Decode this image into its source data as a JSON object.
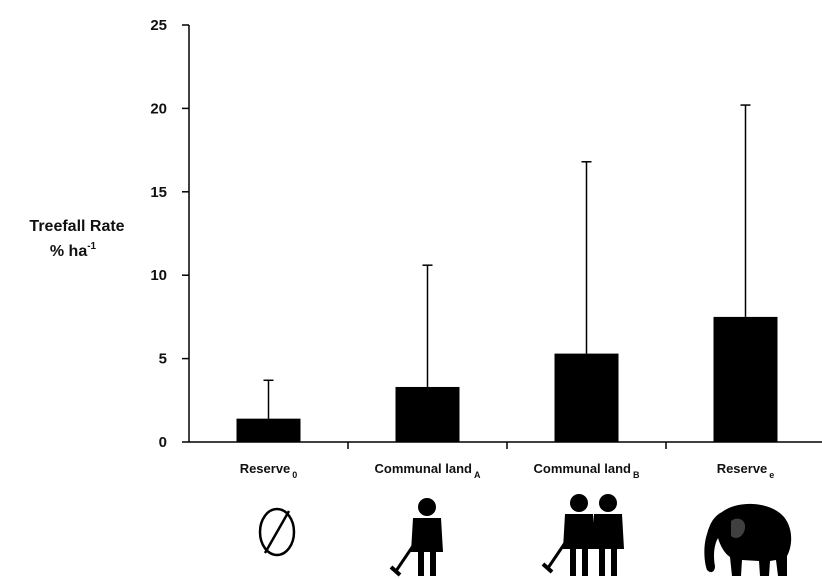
{
  "chart_data": {
    "type": "bar",
    "ylabel_line1": "Treefall Rate",
    "ylabel_line2_base": "% ha",
    "ylabel_line2_sup": "-1",
    "ylim": [
      0,
      25
    ],
    "yticks": [
      "0",
      "5",
      "10",
      "15",
      "20",
      "25"
    ],
    "categories": [
      {
        "name": "Reserve",
        "sub": "0",
        "icon": "no-symbol-icon"
      },
      {
        "name": "Communal land",
        "sub": "A",
        "icon": "person-with-hoe-icon"
      },
      {
        "name": "Communal land",
        "sub": "B",
        "icon": "two-people-with-hoe-icon"
      },
      {
        "name": "Reserve",
        "sub": "e",
        "icon": "elephant-icon"
      }
    ],
    "values": [
      1.4,
      3.3,
      5.3,
      7.5
    ],
    "error_upper": [
      3.7,
      10.6,
      16.8,
      20.2
    ],
    "bar_color": "#000000"
  }
}
